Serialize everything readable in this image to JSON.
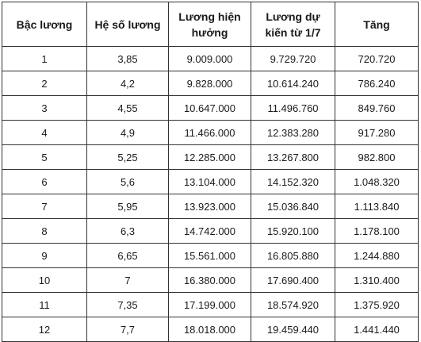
{
  "table": {
    "headers": [
      "Bậc lương",
      "Hệ số lương",
      "Lương hiện hưởng",
      "Lương dự kiến từ 1/7",
      "Tăng"
    ],
    "rows": [
      [
        "1",
        "3,85",
        "9.009.000",
        "9.729.720",
        "720.720"
      ],
      [
        "2",
        "4,2",
        "9.828.000",
        "10.614.240",
        "786.240"
      ],
      [
        "3",
        "4,55",
        "10.647.000",
        "11.496.760",
        "849.760"
      ],
      [
        "4",
        "4,9",
        "11.466.000",
        "12.383.280",
        "917.280"
      ],
      [
        "5",
        "5,25",
        "12.285.000",
        "13.267.800",
        "982.800"
      ],
      [
        "6",
        "5,6",
        "13.104.000",
        "14.152.320",
        "1.048.320"
      ],
      [
        "7",
        "5,95",
        "13.923.000",
        "15.036.840",
        "1.113.840"
      ],
      [
        "8",
        "6,3",
        "14.742.000",
        "15.920.100",
        "1.178.100"
      ],
      [
        "9",
        "6,65",
        "15.561.000",
        "16.805.880",
        "1.244.880"
      ],
      [
        "10",
        "7",
        "16.380.000",
        "17.690.400",
        "1.310.400"
      ],
      [
        "11",
        "7,35",
        "17.199.000",
        "18.574.920",
        "1.375.920"
      ],
      [
        "12",
        "7,7",
        "18.018.000",
        "19.459.440",
        "1.441.440"
      ]
    ]
  }
}
